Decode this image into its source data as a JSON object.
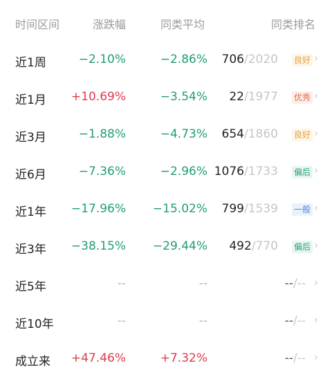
{
  "header": {
    "period": "时间区间",
    "change": "涨跌幅",
    "avg": "同类平均",
    "rank": "同类排名"
  },
  "rows": [
    {
      "period": "近1周",
      "change": "−2.10%",
      "change_dir": "down",
      "avg": "−2.86%",
      "avg_dir": "down",
      "rank": "706",
      "total": "/2020",
      "badge": "良好",
      "badge_type": "good"
    },
    {
      "period": "近1月",
      "change": "+10.69%",
      "change_dir": "up",
      "avg": "−3.54%",
      "avg_dir": "down",
      "rank": "22",
      "total": "/1977",
      "badge": "优秀",
      "badge_type": "excellent"
    },
    {
      "period": "近3月",
      "change": "−1.88%",
      "change_dir": "down",
      "avg": "−4.73%",
      "avg_dir": "down",
      "rank": "654",
      "total": "/1860",
      "badge": "良好",
      "badge_type": "good"
    },
    {
      "period": "近6月",
      "change": "−7.36%",
      "change_dir": "down",
      "avg": "−2.96%",
      "avg_dir": "down",
      "rank": "1076",
      "total": "/1733",
      "badge": "偏后",
      "badge_type": "low"
    },
    {
      "period": "近1年",
      "change": "−17.96%",
      "change_dir": "down",
      "avg": "−15.02%",
      "avg_dir": "down",
      "rank": "799",
      "total": "/1539",
      "badge": "一般",
      "badge_type": "normal"
    },
    {
      "period": "近3年",
      "change": "−38.15%",
      "change_dir": "down",
      "avg": "−29.44%",
      "avg_dir": "down",
      "rank": "492",
      "total": "/770",
      "badge": "偏后",
      "badge_type": "low"
    },
    {
      "period": "近5年",
      "change": "--",
      "change_dir": "none",
      "avg": "--",
      "avg_dir": "none",
      "rank": "--",
      "total": "/--",
      "badge": "",
      "badge_type": "none"
    },
    {
      "period": "近10年",
      "change": "--",
      "change_dir": "none",
      "avg": "--",
      "avg_dir": "none",
      "rank": "--",
      "total": "/--",
      "badge": "",
      "badge_type": "none"
    },
    {
      "period": "成立来",
      "change": "+47.46%",
      "change_dir": "up",
      "avg": "+7.32%",
      "avg_dir": "up",
      "rank": "--",
      "total": "/--",
      "badge": "",
      "badge_type": "none"
    }
  ],
  "colors": {
    "up": "#e03a4e",
    "down": "#1f9e6e",
    "none": "#b5b5b5"
  },
  "icons": {
    "row_arrow": "chevron-right-icon"
  }
}
